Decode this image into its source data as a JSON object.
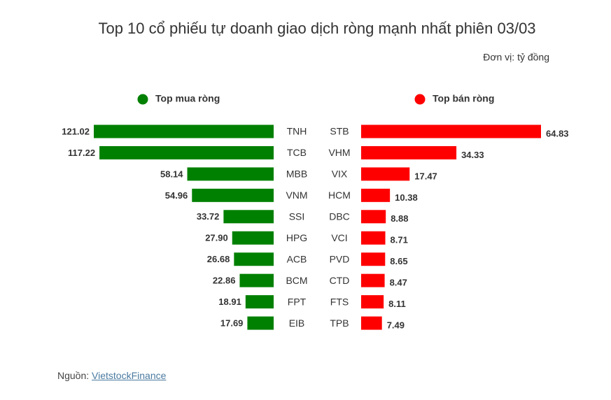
{
  "title": "Top 10 cổ phiếu tự doanh giao dịch ròng mạnh nhất phiên 03/03",
  "unit": "Đơn vị: tỷ đồng",
  "source": {
    "prefix": "Nguồn:",
    "link": "VietstockFinance"
  },
  "chart_data": [
    {
      "type": "bar",
      "name": "Top mua ròng",
      "color": "#008000",
      "direction": "left",
      "categories": [
        "TNH",
        "TCB",
        "MBB",
        "VNM",
        "SSI",
        "HPG",
        "ACB",
        "BCM",
        "FPT",
        "EIB"
      ],
      "values": [
        121.02,
        117.22,
        58.14,
        54.96,
        33.72,
        27.9,
        26.68,
        22.86,
        18.91,
        17.69
      ],
      "value_labels": [
        "121.02",
        "117.22",
        "58.14",
        "54.96",
        "33.72",
        "27.90",
        "26.68",
        "22.86",
        "18.91",
        "17.69"
      ]
    },
    {
      "type": "bar",
      "name": "Top bán ròng",
      "color": "#ff0000",
      "direction": "right",
      "categories": [
        "STB",
        "VHM",
        "VIX",
        "HCM",
        "DBC",
        "VCI",
        "PVD",
        "CTD",
        "FTS",
        "TPB"
      ],
      "values": [
        64.83,
        34.33,
        17.47,
        10.38,
        8.88,
        8.71,
        8.65,
        8.47,
        8.11,
        7.49
      ],
      "value_labels": [
        "64.83",
        "34.33",
        "17.47",
        "10.38",
        "8.88",
        "8.71",
        "8.65",
        "8.47",
        "8.11",
        "7.49"
      ]
    }
  ]
}
